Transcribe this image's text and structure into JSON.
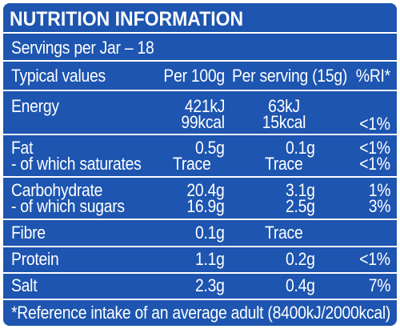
{
  "title": "NUTRITION INFORMATION",
  "servings": "Servings per Jar – 18",
  "headers": {
    "typical": "Typical values",
    "per100": "Per 100g",
    "perServing": "Per serving (15g)",
    "ri": "%RI*"
  },
  "rows": {
    "energy": {
      "label": "Energy",
      "per100_kj": "421kJ",
      "per100_kcal": "99kcal",
      "serv_kj": "63kJ",
      "serv_kcal": "15kcal",
      "ri": "<1%"
    },
    "fat": {
      "label": "Fat",
      "per100": "0.5g",
      "serv": "0.1g",
      "ri": "<1%"
    },
    "saturates": {
      "label": " - of which saturates",
      "per100": "Trace",
      "serv": "Trace",
      "ri": "<1%"
    },
    "carbohydrate": {
      "label": "Carbohydrate",
      "per100": "20.4g",
      "serv": "3.1g",
      "ri": "1%"
    },
    "sugars": {
      "label": " - of which sugars",
      "per100": "16.9g",
      "serv": "2.5g",
      "ri": "3%"
    },
    "fibre": {
      "label": "Fibre",
      "per100": "0.1g",
      "serv": "Trace"
    },
    "protein": {
      "label": "Protein",
      "per100": "1.1g",
      "serv": "0.2g",
      "ri": "<1%"
    },
    "salt": {
      "label": "Salt",
      "per100": "2.3g",
      "serv": "0.4g",
      "ri": "7%"
    }
  },
  "footnote": "*Reference intake of an average adult (8400kJ/2000kcal)",
  "colors": {
    "background": "#1d55b0",
    "text": "#ffffff"
  }
}
